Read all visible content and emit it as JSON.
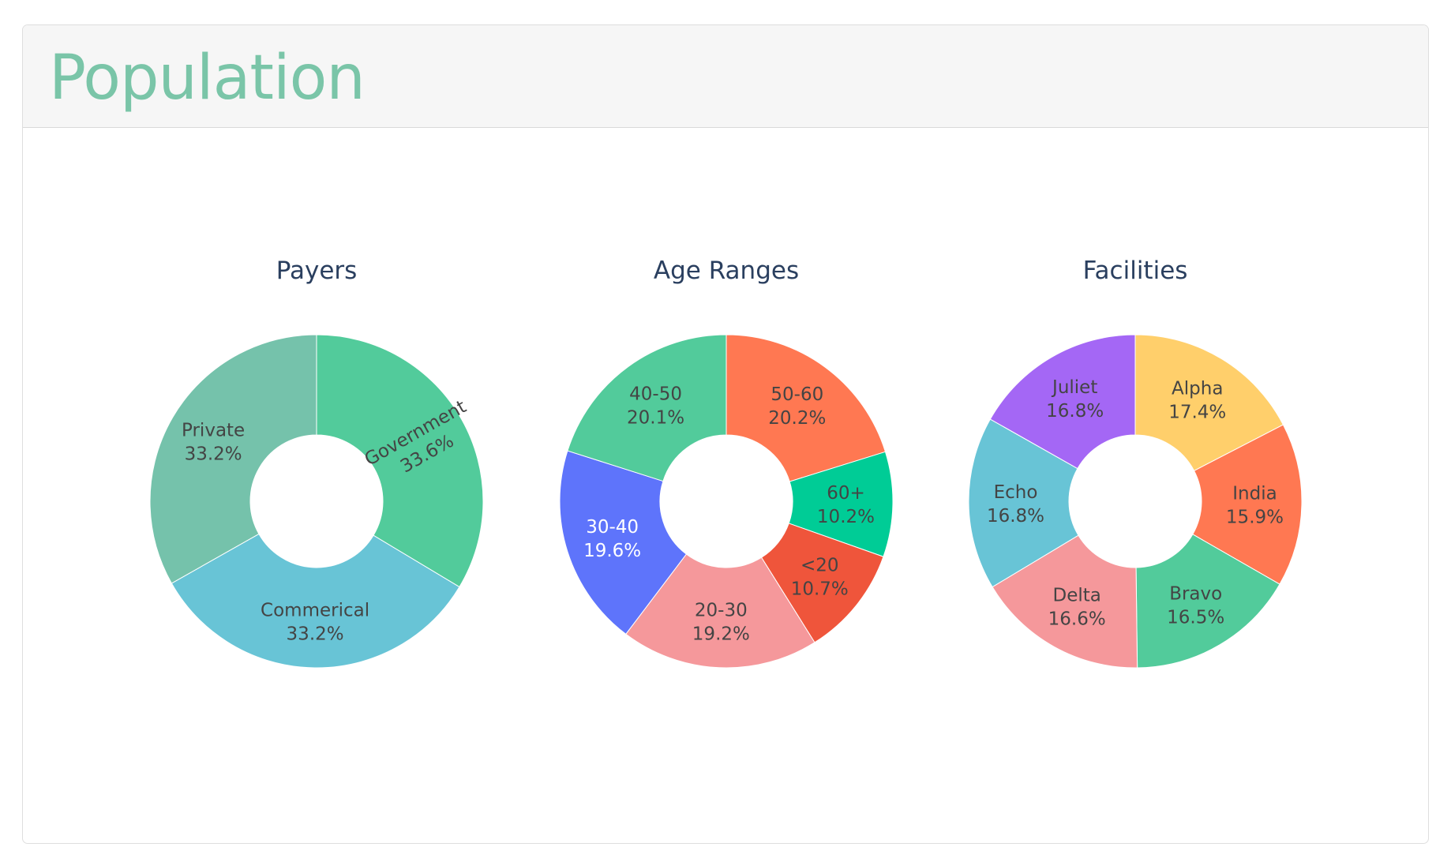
{
  "panel": {
    "title": "Population"
  },
  "chart_data": [
    {
      "type": "pie",
      "title": "Payers",
      "hole": true,
      "slices": [
        {
          "label": "Government",
          "value": 33.6,
          "color": "#52cb9b",
          "text_color": "#444444"
        },
        {
          "label": "Commerical",
          "value": 33.2,
          "color": "#68c4d6",
          "text_color": "#444444"
        },
        {
          "label": "Private",
          "value": 33.2,
          "color": "#75c2ab",
          "text_color": "#444444"
        }
      ]
    },
    {
      "type": "pie",
      "title": "Age Ranges",
      "hole": true,
      "slices": [
        {
          "label": "50-60",
          "value": 20.2,
          "color": "#ff7852",
          "text_color": "#444444"
        },
        {
          "label": "60+",
          "value": 10.2,
          "color": "#00cc96",
          "text_color": "#444444"
        },
        {
          "label": "<20",
          "value": 10.7,
          "color": "#ef553b",
          "text_color": "#444444"
        },
        {
          "label": "20-30",
          "value": 19.2,
          "color": "#f5989b",
          "text_color": "#444444"
        },
        {
          "label": "30-40",
          "value": 19.6,
          "color": "#5e74fb",
          "text_color": "#ffffff"
        },
        {
          "label": "40-50",
          "value": 20.1,
          "color": "#52cb9b",
          "text_color": "#444444"
        }
      ]
    },
    {
      "type": "pie",
      "title": "Facilities",
      "hole": true,
      "slices": [
        {
          "label": "Alpha",
          "value": 17.4,
          "color": "#ffcf6b",
          "text_color": "#444444"
        },
        {
          "label": "India",
          "value": 15.9,
          "color": "#ff7852",
          "text_color": "#444444"
        },
        {
          "label": "Bravo",
          "value": 16.5,
          "color": "#52cb9b",
          "text_color": "#444444"
        },
        {
          "label": "Delta",
          "value": 16.6,
          "color": "#f5989b",
          "text_color": "#444444"
        },
        {
          "label": "Echo",
          "value": 16.8,
          "color": "#68c4d6",
          "text_color": "#444444"
        },
        {
          "label": "Juliet",
          "value": 16.8,
          "color": "#a467f5",
          "text_color": "#444444"
        }
      ]
    }
  ]
}
